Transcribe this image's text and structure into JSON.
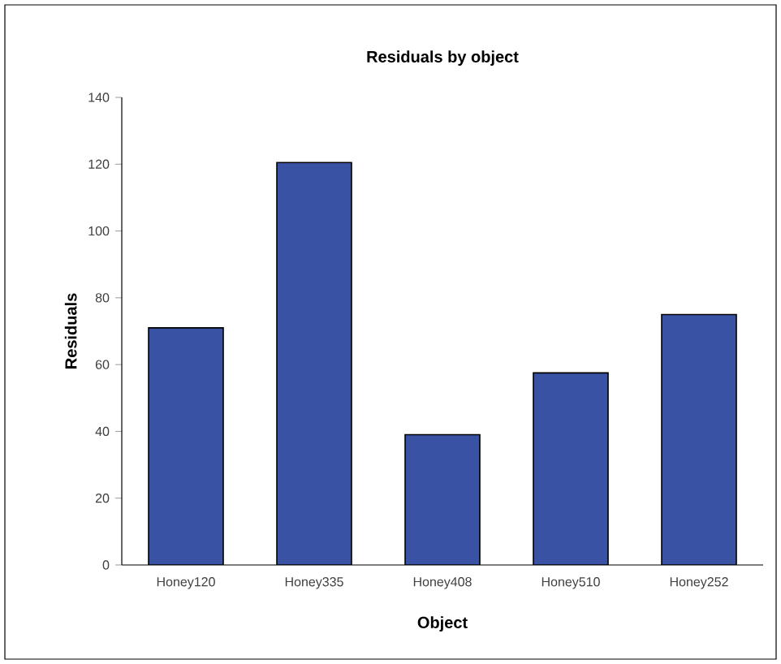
{
  "chart_data": {
    "type": "bar",
    "title": "Residuals by object",
    "xlabel": "Object",
    "ylabel": "Residuals",
    "categories": [
      "Honey120",
      "Honey335",
      "Honey408",
      "Honey510",
      "Honey252"
    ],
    "values": [
      71,
      120.5,
      39,
      57.5,
      75
    ],
    "color": "#3952a3",
    "ylim": [
      0,
      140
    ],
    "yticks": [
      0,
      20,
      40,
      60,
      80,
      100,
      120,
      140
    ],
    "grid": false
  }
}
